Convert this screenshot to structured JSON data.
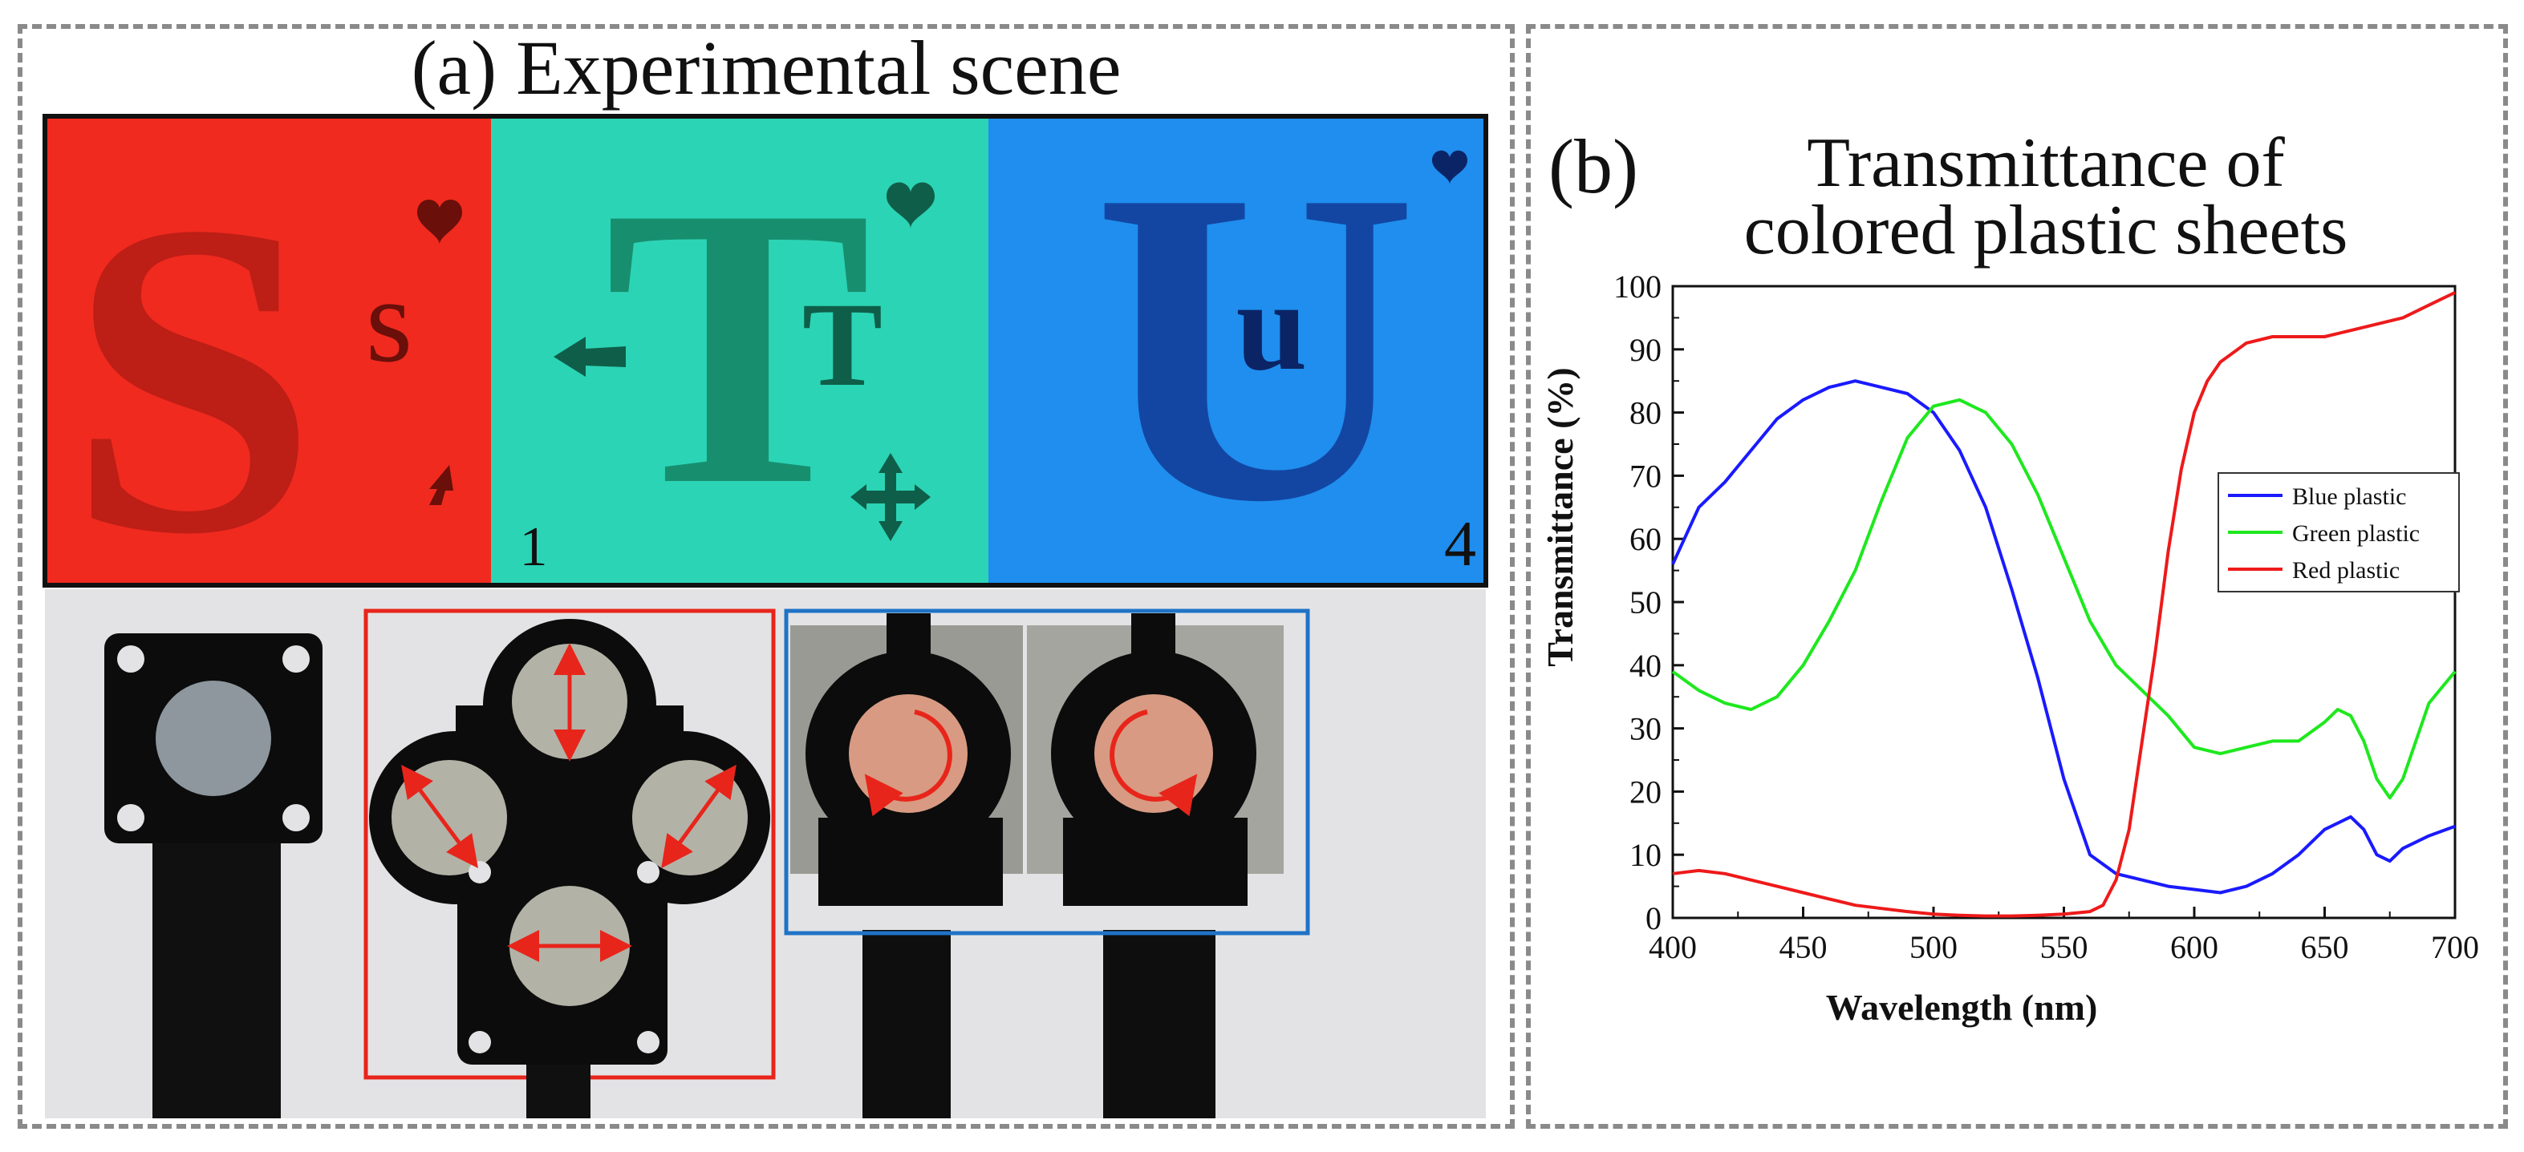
{
  "panel_a": {
    "label": "(a) Experimental scene",
    "letters": [
      "S",
      "T",
      "U"
    ],
    "small_letters": [
      "s",
      "T",
      "u"
    ],
    "marks": [
      "1",
      "4"
    ],
    "colors": {
      "red": "#f02a1f",
      "green": "#2bd4b5",
      "blue": "#1f8eee",
      "arrow": "#e8251b",
      "box_red": "#e8251b",
      "box_blue": "#1f73c6"
    }
  },
  "panel_b": {
    "label": "(b)",
    "title_line1": "Transmittance of",
    "title_line2": "colored plastic sheets"
  },
  "chart_data": {
    "type": "line",
    "title": "Transmittance of colored plastic sheets",
    "xlabel": "Wavelength (nm)",
    "ylabel": "Transmittance (%)",
    "xlim": [
      400,
      700
    ],
    "ylim": [
      0,
      100
    ],
    "xticks": [
      400,
      450,
      500,
      550,
      600,
      650,
      700
    ],
    "yticks": [
      0,
      10,
      20,
      30,
      40,
      50,
      60,
      70,
      80,
      90,
      100
    ],
    "legend_position": "center-right",
    "series": [
      {
        "name": "Blue plastic",
        "color": "#1a1aff",
        "x": [
          400,
          410,
          420,
          430,
          440,
          450,
          460,
          470,
          480,
          490,
          500,
          510,
          520,
          530,
          540,
          550,
          560,
          570,
          580,
          590,
          600,
          610,
          620,
          630,
          640,
          650,
          660,
          665,
          670,
          675,
          680,
          690,
          700
        ],
        "y": [
          56,
          65,
          69,
          74,
          79,
          82,
          84,
          85,
          84,
          83,
          80,
          74,
          65,
          52,
          38,
          22,
          10,
          7,
          6,
          5,
          4.5,
          4,
          5,
          7,
          10,
          14,
          16,
          14,
          10,
          9,
          11,
          13,
          14.5
        ]
      },
      {
        "name": "Green plastic",
        "color": "#1ee81e",
        "x": [
          400,
          410,
          420,
          430,
          440,
          450,
          460,
          470,
          480,
          490,
          500,
          510,
          520,
          530,
          540,
          550,
          560,
          570,
          580,
          590,
          600,
          610,
          620,
          630,
          640,
          650,
          655,
          660,
          665,
          670,
          675,
          680,
          690,
          700
        ],
        "y": [
          39,
          36,
          34,
          33,
          35,
          40,
          47,
          55,
          66,
          76,
          81,
          82,
          80,
          75,
          67,
          57,
          47,
          40,
          36,
          32,
          27,
          26,
          27,
          28,
          28,
          31,
          33,
          32,
          28,
          22,
          19,
          22,
          34,
          39
        ]
      },
      {
        "name": "Red plastic",
        "color": "#ee1a1a",
        "x": [
          400,
          410,
          420,
          430,
          440,
          450,
          460,
          470,
          480,
          490,
          500,
          510,
          520,
          530,
          540,
          550,
          560,
          565,
          570,
          575,
          580,
          585,
          590,
          595,
          600,
          605,
          610,
          620,
          630,
          640,
          650,
          660,
          670,
          680,
          690,
          700
        ],
        "y": [
          7,
          7.5,
          7,
          6,
          5,
          4,
          3,
          2,
          1.5,
          1,
          0.6,
          0.4,
          0.3,
          0.3,
          0.4,
          0.6,
          1,
          2,
          6,
          14,
          28,
          42,
          58,
          71,
          80,
          85,
          88,
          91,
          92,
          92,
          92,
          93,
          94,
          95,
          97,
          99
        ]
      }
    ]
  }
}
